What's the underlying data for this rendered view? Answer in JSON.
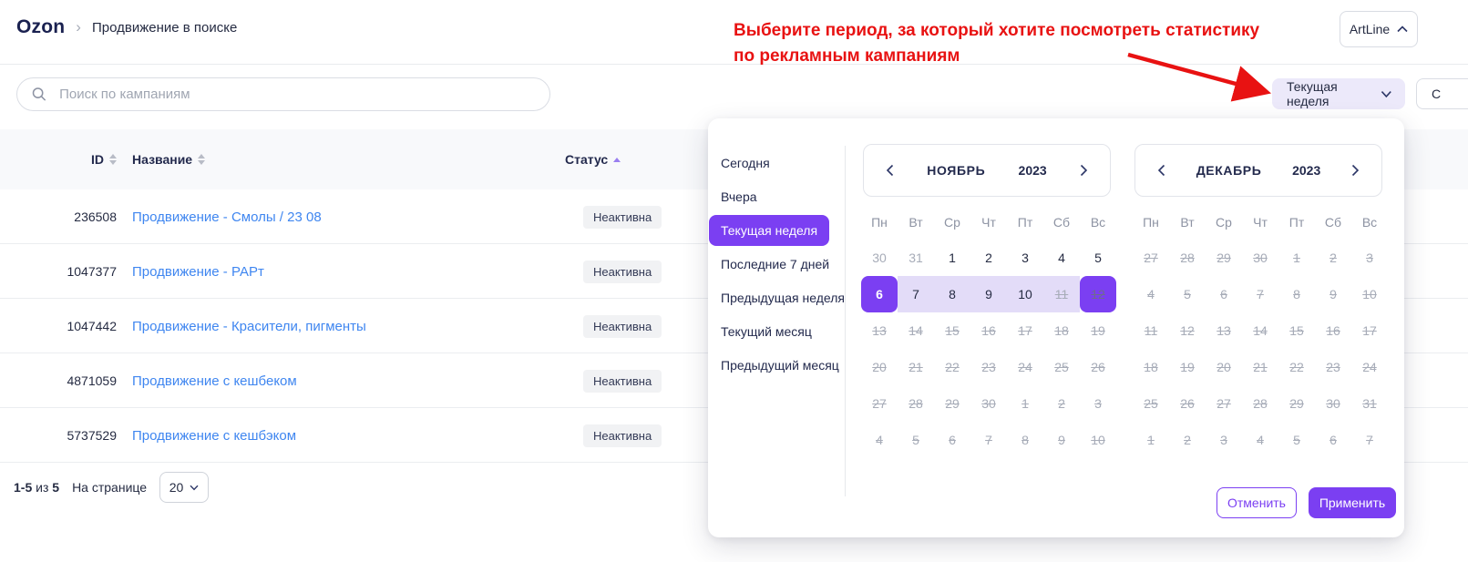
{
  "colors": {
    "accent": "#7b3ff2",
    "range_bg": "#e3dcf8",
    "link": "#3f86f0",
    "annotation_red": "#e81212",
    "navy": "#252b42",
    "badge_bg": "#f1f2f4",
    "lavender": "#ece9fa"
  },
  "breadcrumb": {
    "brand": "Ozon",
    "page": "Продвижение в поиске"
  },
  "account": {
    "name": "ArtLine"
  },
  "annotation": {
    "line1": "Выберите период, за который хотите посмотреть статистику",
    "line2": "по рекламным кампаниям"
  },
  "search": {
    "placeholder": "Поиск по кампаниям"
  },
  "period_button": {
    "label": "Текущая неделя"
  },
  "partial_button": {
    "label": "С"
  },
  "table": {
    "headers": {
      "id": "ID",
      "name": "Название",
      "status": "Статус"
    },
    "rows": [
      {
        "id": "236508",
        "name": "Продвижение - Смолы / 23 08",
        "status": "Неактивна"
      },
      {
        "id": "1047377",
        "name": "Продвижение - РАРт",
        "status": "Неактивна"
      },
      {
        "id": "1047442",
        "name": "Продвижение - Красители, пигменты",
        "status": "Неактивна"
      },
      {
        "id": "4871059",
        "name": "Продвижение с кешбеком",
        "status": "Неактивна"
      },
      {
        "id": "5737529",
        "name": "Продвижение с кешбэком",
        "status": "Неактивна"
      }
    ]
  },
  "pagination": {
    "range": "1-5",
    "of": "из",
    "total": "5",
    "per_page_label": "На странице",
    "per_page": "20"
  },
  "datepicker": {
    "presets": [
      "Сегодня",
      "Вчера",
      "Текущая неделя",
      "Последние 7 дней",
      "Предыдущая неделя",
      "Текущий месяц",
      "Предыдущий месяц"
    ],
    "selected_preset": "Текущая неделя",
    "cancel_label": "Отменить",
    "apply_label": "Применить",
    "months": [
      {
        "name": "НОЯБРЬ",
        "year": "2023",
        "weekdays": [
          "Пн",
          "Вт",
          "Ср",
          "Чт",
          "Пт",
          "Сб",
          "Вс"
        ],
        "days": [
          {
            "t": "30",
            "s": "muted"
          },
          {
            "t": "31",
            "s": "muted"
          },
          {
            "t": "1",
            "s": "n"
          },
          {
            "t": "2",
            "s": "n"
          },
          {
            "t": "3",
            "s": "n"
          },
          {
            "t": "4",
            "s": "n"
          },
          {
            "t": "5",
            "s": "n"
          },
          {
            "t": "6",
            "s": "start"
          },
          {
            "t": "7",
            "s": "range"
          },
          {
            "t": "8",
            "s": "range"
          },
          {
            "t": "9",
            "s": "range"
          },
          {
            "t": "10",
            "s": "range"
          },
          {
            "t": "11",
            "s": "range-struck"
          },
          {
            "t": "12",
            "s": "end-struck"
          },
          {
            "t": "13",
            "s": "struck"
          },
          {
            "t": "14",
            "s": "struck"
          },
          {
            "t": "15",
            "s": "struck"
          },
          {
            "t": "16",
            "s": "struck"
          },
          {
            "t": "17",
            "s": "struck"
          },
          {
            "t": "18",
            "s": "struck"
          },
          {
            "t": "19",
            "s": "struck"
          },
          {
            "t": "20",
            "s": "struck"
          },
          {
            "t": "21",
            "s": "struck"
          },
          {
            "t": "22",
            "s": "struck"
          },
          {
            "t": "23",
            "s": "struck"
          },
          {
            "t": "24",
            "s": "struck"
          },
          {
            "t": "25",
            "s": "struck"
          },
          {
            "t": "26",
            "s": "struck"
          },
          {
            "t": "27",
            "s": "struck"
          },
          {
            "t": "28",
            "s": "struck"
          },
          {
            "t": "29",
            "s": "struck"
          },
          {
            "t": "30",
            "s": "struck"
          },
          {
            "t": "1",
            "s": "struck"
          },
          {
            "t": "2",
            "s": "struck"
          },
          {
            "t": "3",
            "s": "struck"
          },
          {
            "t": "4",
            "s": "struck"
          },
          {
            "t": "5",
            "s": "struck"
          },
          {
            "t": "6",
            "s": "struck"
          },
          {
            "t": "7",
            "s": "struck"
          },
          {
            "t": "8",
            "s": "struck"
          },
          {
            "t": "9",
            "s": "struck"
          },
          {
            "t": "10",
            "s": "struck"
          }
        ]
      },
      {
        "name": "ДЕКАБРЬ",
        "year": "2023",
        "weekdays": [
          "Пн",
          "Вт",
          "Ср",
          "Чт",
          "Пт",
          "Сб",
          "Вс"
        ],
        "days": [
          {
            "t": "27",
            "s": "struck"
          },
          {
            "t": "28",
            "s": "struck"
          },
          {
            "t": "29",
            "s": "struck"
          },
          {
            "t": "30",
            "s": "struck"
          },
          {
            "t": "1",
            "s": "struck"
          },
          {
            "t": "2",
            "s": "struck"
          },
          {
            "t": "3",
            "s": "struck"
          },
          {
            "t": "4",
            "s": "struck"
          },
          {
            "t": "5",
            "s": "struck"
          },
          {
            "t": "6",
            "s": "struck"
          },
          {
            "t": "7",
            "s": "struck"
          },
          {
            "t": "8",
            "s": "struck"
          },
          {
            "t": "9",
            "s": "struck"
          },
          {
            "t": "10",
            "s": "struck"
          },
          {
            "t": "11",
            "s": "struck"
          },
          {
            "t": "12",
            "s": "struck"
          },
          {
            "t": "13",
            "s": "struck"
          },
          {
            "t": "14",
            "s": "struck"
          },
          {
            "t": "15",
            "s": "struck"
          },
          {
            "t": "16",
            "s": "struck"
          },
          {
            "t": "17",
            "s": "struck"
          },
          {
            "t": "18",
            "s": "struck"
          },
          {
            "t": "19",
            "s": "struck"
          },
          {
            "t": "20",
            "s": "struck"
          },
          {
            "t": "21",
            "s": "struck"
          },
          {
            "t": "22",
            "s": "struck"
          },
          {
            "t": "23",
            "s": "struck"
          },
          {
            "t": "24",
            "s": "struck"
          },
          {
            "t": "25",
            "s": "struck"
          },
          {
            "t": "26",
            "s": "struck"
          },
          {
            "t": "27",
            "s": "struck"
          },
          {
            "t": "28",
            "s": "struck"
          },
          {
            "t": "29",
            "s": "struck"
          },
          {
            "t": "30",
            "s": "struck"
          },
          {
            "t": "31",
            "s": "struck"
          },
          {
            "t": "1",
            "s": "struck"
          },
          {
            "t": "2",
            "s": "struck"
          },
          {
            "t": "3",
            "s": "struck"
          },
          {
            "t": "4",
            "s": "struck"
          },
          {
            "t": "5",
            "s": "struck"
          },
          {
            "t": "6",
            "s": "struck"
          },
          {
            "t": "7",
            "s": "struck"
          }
        ]
      }
    ]
  }
}
